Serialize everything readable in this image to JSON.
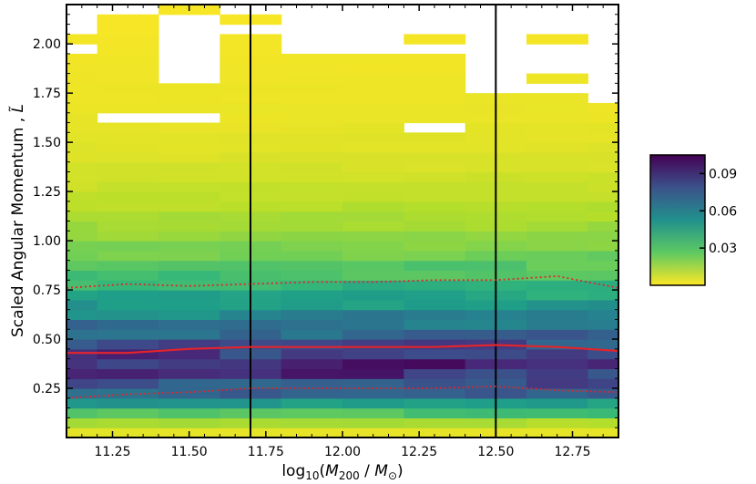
{
  "chart_data": {
    "type": "heatmap",
    "xlabel": "log10(M200 / M⊙)",
    "ylabel": "Scaled Angular Momentum , L̃",
    "xlim": [
      11.1,
      12.9
    ],
    "ylim": [
      0,
      2.2
    ],
    "x_ticks": [
      "11.25",
      "11.50",
      "11.75",
      "12.00",
      "12.25",
      "12.50",
      "12.75"
    ],
    "y_ticks": [
      "0.25",
      "0.50",
      "0.75",
      "1.00",
      "1.25",
      "1.50",
      "1.75",
      "2.00"
    ],
    "colorbar": {
      "ticks": [
        "0.03",
        "0.06",
        "0.09"
      ],
      "range": [
        0.0,
        0.105
      ],
      "colormap": "viridis_r"
    },
    "vertical_lines": [
      11.7,
      12.5
    ],
    "x_bins": [
      11.1,
      11.2,
      11.4,
      11.6,
      11.8,
      12.0,
      12.2,
      12.4,
      12.6,
      12.8,
      12.9
    ],
    "y_bin_width": 0.05,
    "empty_cells": [
      [
        0,
        2.05,
        2.2
      ],
      [
        0,
        1.95,
        2.0
      ],
      [
        1,
        2.15,
        2.2
      ],
      [
        1,
        1.6,
        1.65
      ],
      [
        2,
        1.8,
        2.15
      ],
      [
        2,
        1.6,
        1.65
      ],
      [
        3,
        2.15,
        2.2
      ],
      [
        3,
        2.05,
        2.1
      ],
      [
        4,
        1.95,
        2.2
      ],
      [
        5,
        2.15,
        2.2
      ],
      [
        5,
        1.95,
        2.15
      ],
      [
        6,
        2.05,
        2.2
      ],
      [
        6,
        1.95,
        2.0
      ],
      [
        6,
        1.55,
        1.6
      ],
      [
        7,
        1.75,
        2.2
      ],
      [
        8,
        2.05,
        2.2
      ],
      [
        8,
        1.85,
        2.0
      ],
      [
        8,
        1.75,
        1.8
      ],
      [
        9,
        1.7,
        2.2
      ],
      [
        10,
        1.7,
        2.2
      ]
    ],
    "mean_density_profile": {
      "y": [
        0.025,
        0.075,
        0.125,
        0.175,
        0.225,
        0.275,
        0.325,
        0.375,
        0.425,
        0.475,
        0.525,
        0.575,
        0.625,
        0.675,
        0.725,
        0.775,
        0.825,
        0.875,
        0.925,
        0.975,
        1.05,
        1.15,
        1.25,
        1.35,
        1.45,
        1.55,
        1.65,
        1.8,
        2.0,
        2.2
      ],
      "v": [
        0.004,
        0.013,
        0.03,
        0.05,
        0.068,
        0.08,
        0.088,
        0.09,
        0.088,
        0.08,
        0.072,
        0.064,
        0.056,
        0.048,
        0.042,
        0.036,
        0.031,
        0.027,
        0.023,
        0.02,
        0.016,
        0.012,
        0.009,
        0.007,
        0.005,
        0.004,
        0.003,
        0.0025,
        0.0015,
        0.001
      ]
    },
    "series": [
      {
        "style": "solid",
        "color": "#e3242b",
        "x": [
          11.1,
          11.3,
          11.5,
          11.7,
          11.9,
          12.1,
          12.3,
          12.5,
          12.7,
          12.9
        ],
        "y": [
          0.43,
          0.43,
          0.45,
          0.46,
          0.46,
          0.46,
          0.46,
          0.47,
          0.46,
          0.44
        ]
      },
      {
        "style": "dotted",
        "color": "#e3242b",
        "x": [
          11.1,
          11.3,
          11.5,
          11.7,
          11.9,
          12.1,
          12.3,
          12.5,
          12.7,
          12.9
        ],
        "y": [
          0.76,
          0.78,
          0.77,
          0.78,
          0.79,
          0.79,
          0.8,
          0.8,
          0.82,
          0.76
        ]
      },
      {
        "style": "dotted",
        "color": "#e3242b",
        "x": [
          11.1,
          11.3,
          11.5,
          11.7,
          11.9,
          12.1,
          12.3,
          12.5,
          12.7,
          12.9
        ],
        "y": [
          0.2,
          0.22,
          0.23,
          0.25,
          0.25,
          0.25,
          0.25,
          0.26,
          0.24,
          0.23
        ]
      }
    ]
  }
}
